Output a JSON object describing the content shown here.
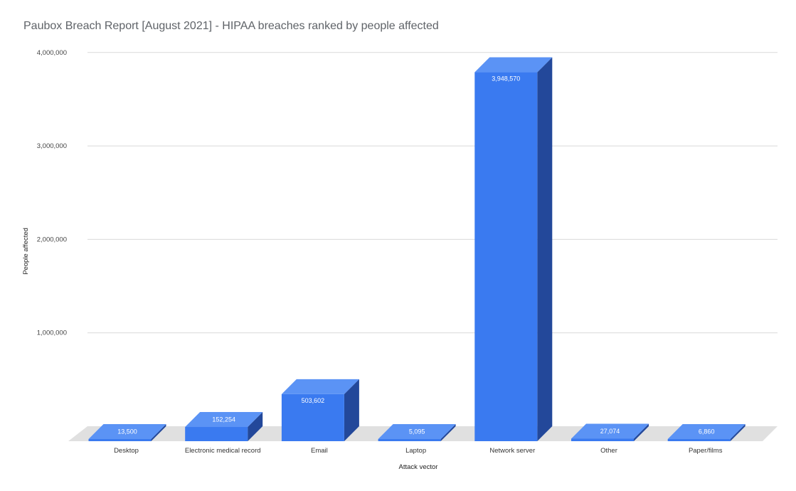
{
  "chart_data": {
    "type": "bar",
    "title": "Paubox Breach Report [August 2021] - HIPAA breaches ranked by people affected",
    "xlabel": "Attack vector",
    "ylabel": "People affected",
    "categories": [
      "Desktop",
      "Electronic medical record",
      "Email",
      "Laptop",
      "Network server",
      "Other",
      "Paper/films"
    ],
    "values": [
      13500,
      152254,
      503602,
      5095,
      3948570,
      27074,
      6860
    ],
    "data_labels": [
      "13,500",
      "152,254",
      "503,602",
      "5,095",
      "3,948,570",
      "27,074",
      "6,860"
    ],
    "yticks": [
      "1,000,000",
      "2,000,000",
      "3,000,000",
      "4,000,000"
    ],
    "ylim": [
      0,
      4000000
    ],
    "grid": true,
    "legend": "none",
    "style": "3d",
    "colors": {
      "bar_front": "#3a7af0",
      "bar_top": "#5b93f5",
      "bar_side": "#23489a",
      "floor": "#e0e0e0",
      "grid": "#d9d9d9"
    }
  }
}
